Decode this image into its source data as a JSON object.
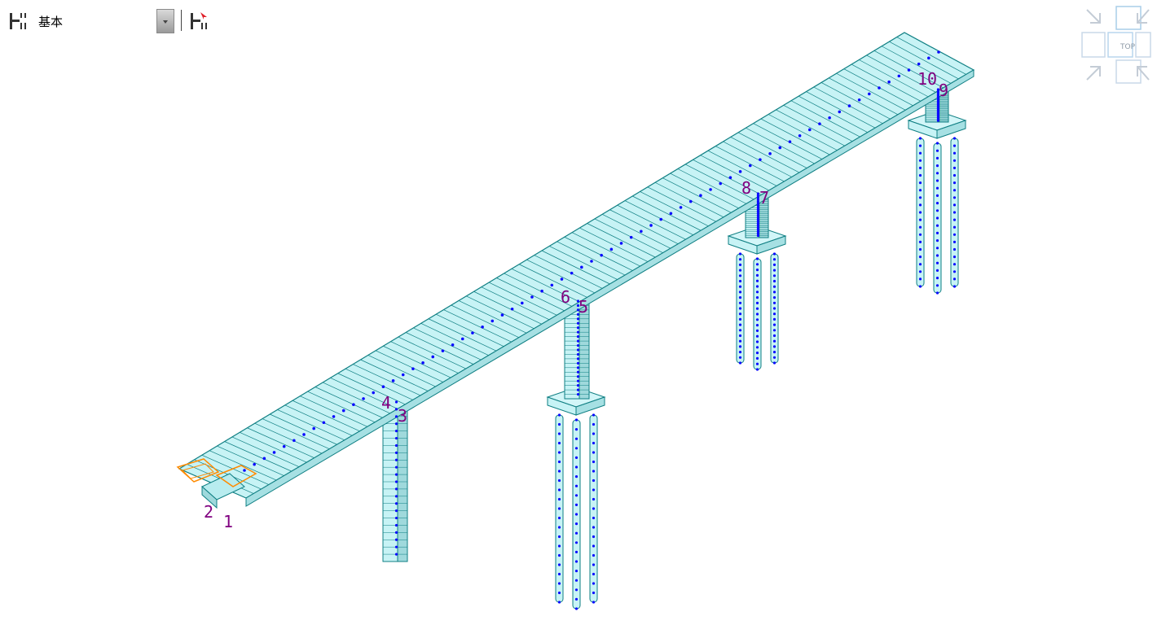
{
  "toolbar": {
    "mode_label": "基本",
    "mode_icon": "layer-settings-icon",
    "options_icon": "layer-options-icon"
  },
  "viewcube": {
    "top_label": "TOP"
  },
  "model": {
    "node_labels": [
      "1",
      "2",
      "3",
      "4",
      "5",
      "6",
      "7",
      "8",
      "9",
      "10"
    ],
    "colors": {
      "member_fill": "#c7f3f5",
      "member_edge": "#0f7f83",
      "node": "#0a0aff",
      "label": "#800080",
      "highlight": "#ff8a00"
    }
  }
}
